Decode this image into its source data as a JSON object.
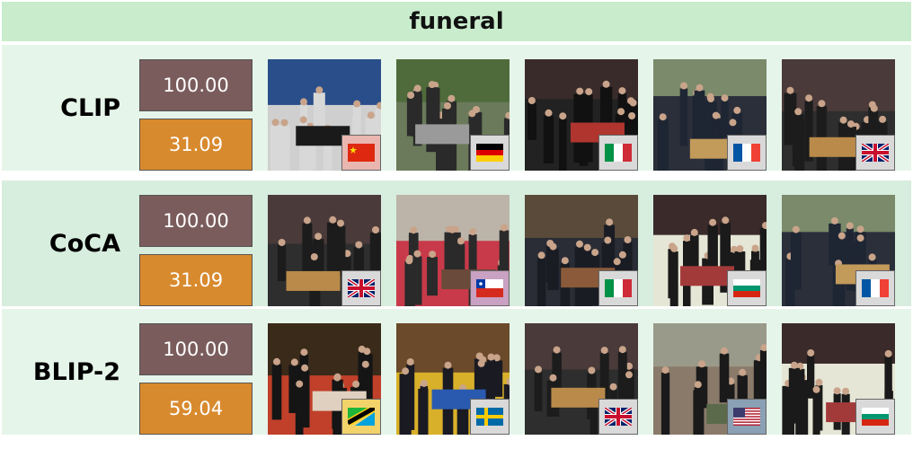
{
  "title": "funeral",
  "rows": [
    {
      "model": "CLIP",
      "score_top": "100.00",
      "score_bottom": "31.09",
      "images": [
        {
          "palette": [
            "#2a4e8a",
            "#d8d8d8",
            "#1a1a1a",
            "#cfcfcf"
          ],
          "flag": "china",
          "flag_bg": "#e9b7b0"
        },
        {
          "palette": [
            "#4f6b3b",
            "#2a2a2a",
            "#9a9a9a",
            "#6a7a5a"
          ],
          "flag": "germany",
          "flag_bg": "#d9d9d9"
        },
        {
          "palette": [
            "#3a2b2b",
            "#111111",
            "#b0352f",
            "#222222"
          ],
          "flag": "italy",
          "flag_bg": "#d9d9d9"
        },
        {
          "palette": [
            "#7a8a6a",
            "#1e2533",
            "#c29a5a",
            "#2a2f3a"
          ],
          "flag": "france",
          "flag_bg": "#d9d9d9"
        },
        {
          "palette": [
            "#4a3a3a",
            "#1c1c1c",
            "#b98a4a",
            "#2e2e2e"
          ],
          "flag": "uk",
          "flag_bg": "#d9d9d9"
        }
      ]
    },
    {
      "model": "CoCA",
      "score_top": "100.00",
      "score_bottom": "31.09",
      "images": [
        {
          "palette": [
            "#4a3a3a",
            "#1c1c1c",
            "#b98a4a",
            "#2e2e2e"
          ],
          "flag": "uk",
          "flag_bg": "#d9d9d9"
        },
        {
          "palette": [
            "#bcb4a8",
            "#2a2a2a",
            "#6a4a3a",
            "#c83a4a"
          ],
          "flag": "chile",
          "flag_bg": "#c9a1c2"
        },
        {
          "palette": [
            "#5a4a3a",
            "#1a1c24",
            "#8a5a3a",
            "#2a2d36"
          ],
          "flag": "italy",
          "flag_bg": "#d9d9d9"
        },
        {
          "palette": [
            "#3a2a2a",
            "#1a1a1a",
            "#a33a3a",
            "#e6e6d6"
          ],
          "flag": "bulgaria",
          "flag_bg": "#d9d9d9"
        },
        {
          "palette": [
            "#7a8a6a",
            "#1e2533",
            "#c29a5a",
            "#2a2f3a"
          ],
          "flag": "france",
          "flag_bg": "#d9d9d9"
        }
      ]
    },
    {
      "model": "BLIP-2",
      "score_top": "100.00",
      "score_bottom": "59.04",
      "images": [
        {
          "palette": [
            "#3a2a1a",
            "#151515",
            "#e0d0c0",
            "#c0402a"
          ],
          "flag": "tanzania",
          "flag_bg": "#f2d36a"
        },
        {
          "palette": [
            "#6a4a2a",
            "#1a1a22",
            "#2a5ab0",
            "#d8b02a"
          ],
          "flag": "sweden",
          "flag_bg": "#d9d9d9"
        },
        {
          "palette": [
            "#4a3a3a",
            "#1c1c1c",
            "#b98a4a",
            "#2e2e2e"
          ],
          "flag": "uk",
          "flag_bg": "#d9d9d9"
        },
        {
          "palette": [
            "#9a9a8a",
            "#1a1a1a",
            "#5a6a4a",
            "#8a7a6a"
          ],
          "flag": "usa",
          "flag_bg": "#8aa0b4"
        },
        {
          "palette": [
            "#3a2a2a",
            "#1a1a1a",
            "#a33a3a",
            "#e6e6d6"
          ],
          "flag": "bulgaria",
          "flag_bg": "#d9d9d9"
        }
      ]
    }
  ]
}
